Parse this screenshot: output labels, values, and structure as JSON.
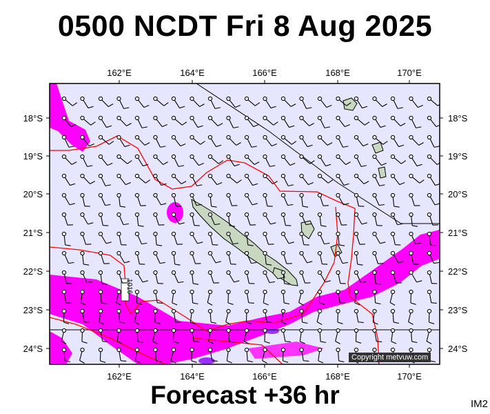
{
  "title": "0500 NCDT Fri 8 Aug 2025",
  "footer": "Forecast +36 hr",
  "image_code": "IM2",
  "copyright": "Copyright metvuw.com",
  "isobar_label": "1016",
  "axes": {
    "lon_ticks": [
      "162°E",
      "164°E",
      "166°E",
      "168°E",
      "170°E"
    ],
    "lat_ticks": [
      "18°S",
      "19°S",
      "20°S",
      "21°S",
      "22°S",
      "23°S",
      "24°S"
    ],
    "lon_range": [
      160.0,
      171.0
    ],
    "lat_range": [
      -24.4,
      -17.4
    ]
  },
  "colors": {
    "ocean": "#e6e6ff",
    "land": "#c8d8c0",
    "rain_heavy": "#ff00ff",
    "rain_light": "#ff66ff",
    "isobar": "#ff0000",
    "eez_line": "#000000"
  }
}
